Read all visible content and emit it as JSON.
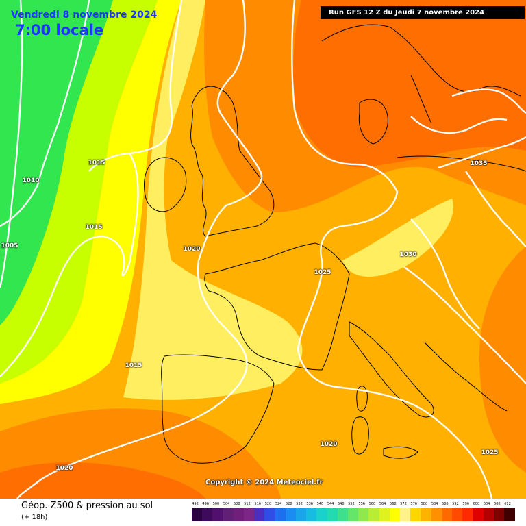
{
  "header": {
    "date": "Vendredi 8 novembre 2024",
    "time": "7:00 locale",
    "run": "Run GFS 12 Z du Jeudi 7 novembre 2024"
  },
  "isobar_labels": [
    {
      "text": "1015"
    },
    {
      "text": "1010"
    },
    {
      "text": "1015"
    },
    {
      "text": "1005"
    },
    {
      "text": "1020"
    },
    {
      "text": "1025"
    },
    {
      "text": "1030"
    },
    {
      "text": "1035"
    },
    {
      "text": "1015"
    },
    {
      "text": "1020"
    },
    {
      "text": "1020"
    },
    {
      "text": "1025"
    }
  ],
  "copyright": "Copyright © 2024 Meteociel.fr",
  "footer": {
    "title": "Géop. Z500 & pression au sol",
    "step": "(+ 18h)"
  },
  "legend": {
    "values": [
      "492",
      "496",
      "500",
      "504",
      "508",
      "512",
      "516",
      "520",
      "524",
      "528",
      "532",
      "536",
      "540",
      "544",
      "548",
      "552",
      "556",
      "560",
      "564",
      "568",
      "572",
      "576",
      "580",
      "584",
      "588",
      "592",
      "596",
      "600",
      "604",
      "608",
      "612"
    ],
    "colors": [
      "#2a0040",
      "#3d0a5c",
      "#52106e",
      "#611f75",
      "#70207a",
      "#7e2688",
      "#4b2fc4",
      "#2f4ee6",
      "#1e6ef0",
      "#1a8cf2",
      "#18a6e8",
      "#17bde0",
      "#1ad1cc",
      "#22dcb0",
      "#3ee08e",
      "#66e56b",
      "#8fe94c",
      "#b8ed34",
      "#dff21f",
      "#ffff00",
      "#fff28c",
      "#ffd700",
      "#ffb300",
      "#ff9000",
      "#ff6a00",
      "#ff4a00",
      "#ff2a00",
      "#e00000",
      "#b30000",
      "#800000",
      "#400000"
    ]
  },
  "colors": {
    "title_blue": "#1a36ff",
    "zone_566": "#32e650",
    "zone_568": "#c8ff00",
    "zone_572": "#ffff00",
    "zone_576": "#ffef60",
    "zone_580": "#ffd200",
    "zone_584": "#ffb000",
    "zone_588": "#ff8c00",
    "zone_592": "#ff6e00"
  }
}
